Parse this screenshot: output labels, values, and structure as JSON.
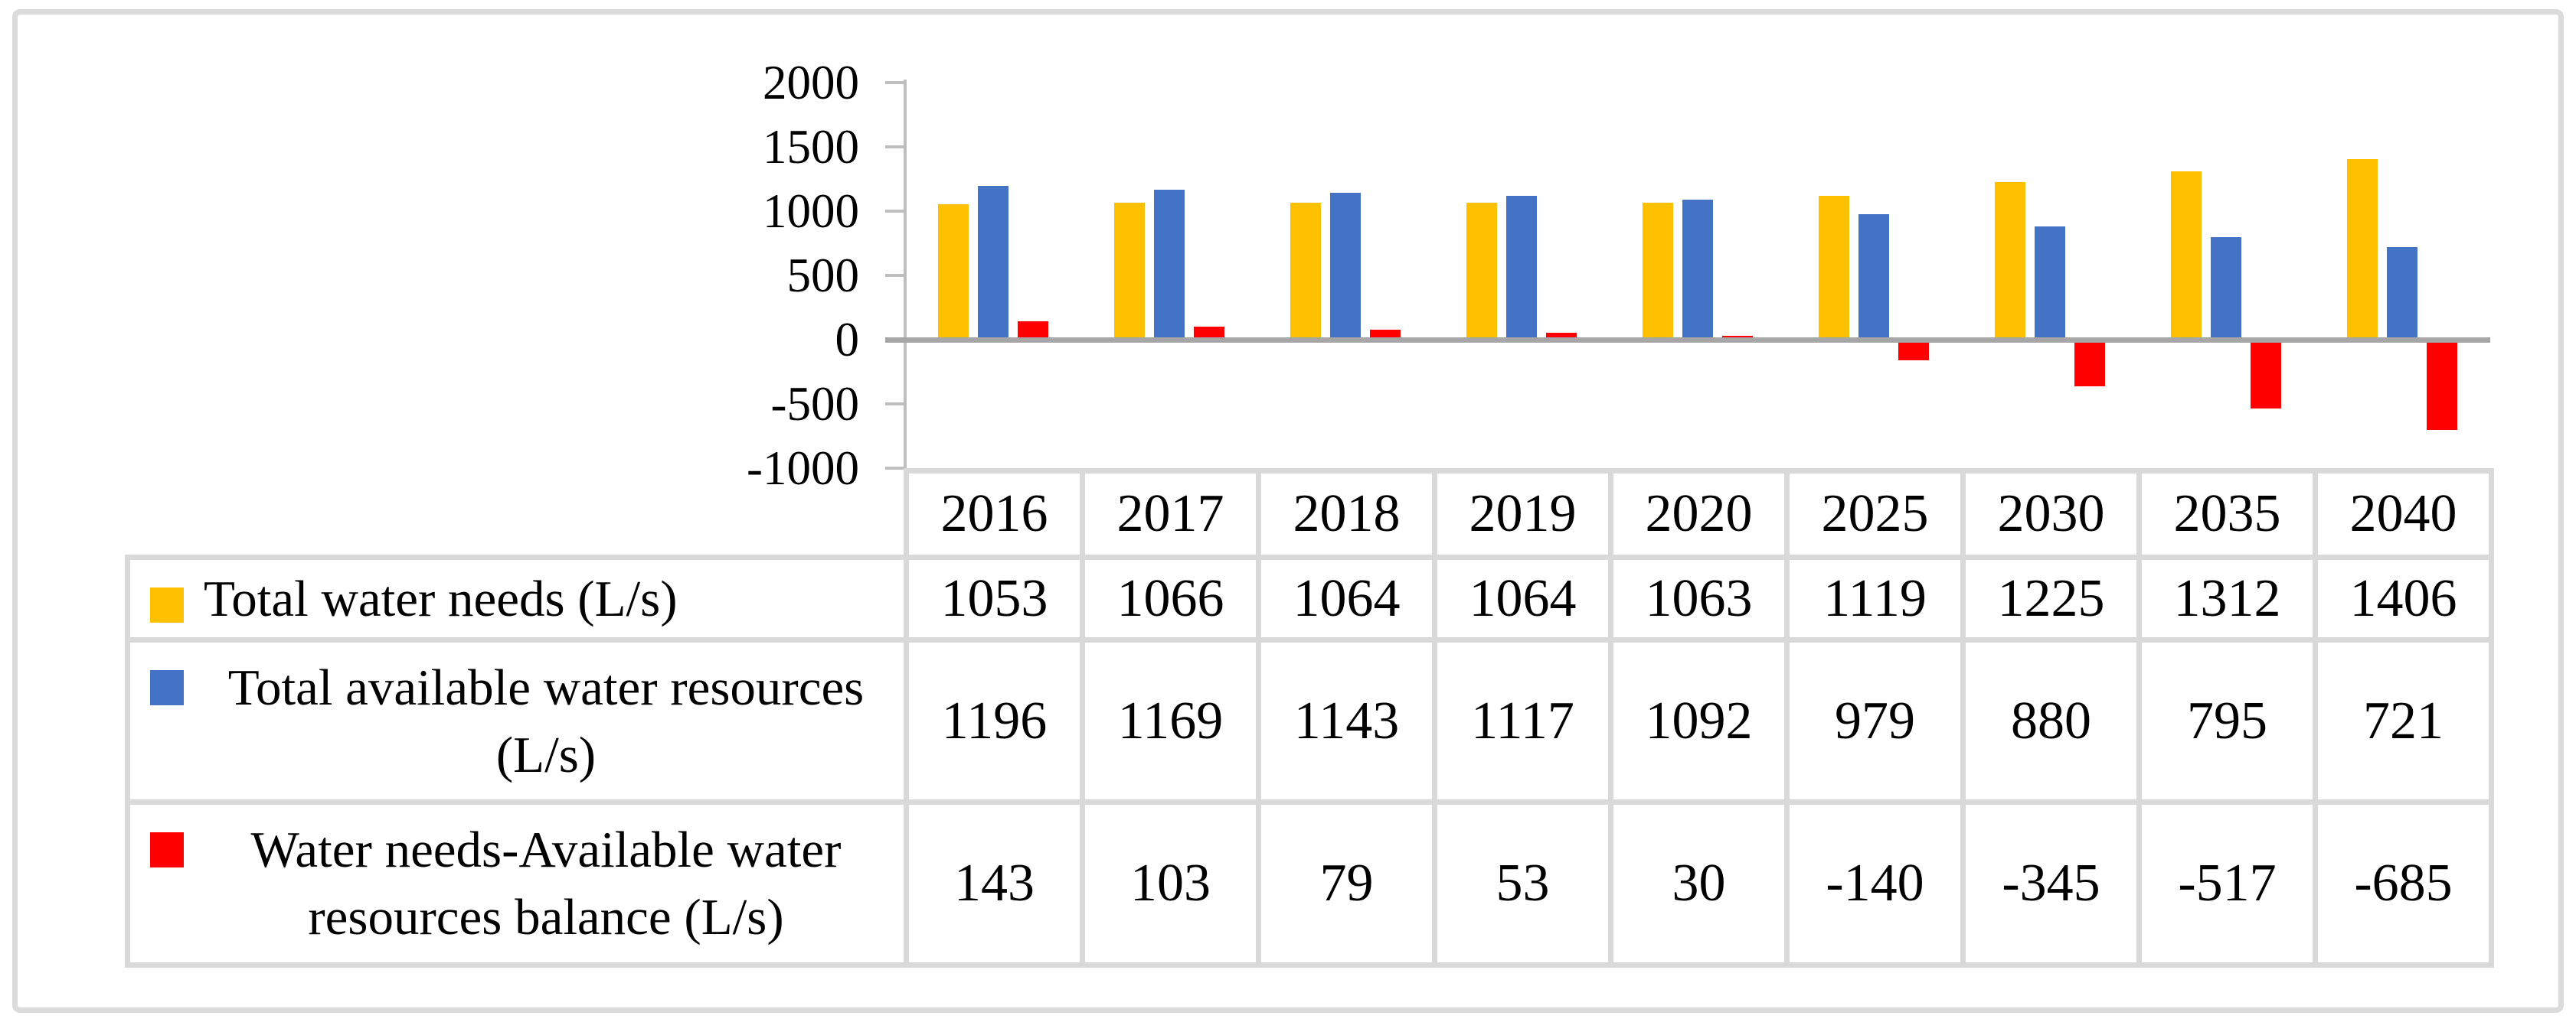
{
  "chart_data": {
    "type": "bar",
    "title": "",
    "xlabel": "",
    "ylabel": "",
    "categories": [
      "2016",
      "2017",
      "2018",
      "2019",
      "2020",
      "2025",
      "2030",
      "2035",
      "2040"
    ],
    "series": [
      {
        "name": "Total water needs (L/s)",
        "color": "#FFC000",
        "values": [
          1053,
          1066,
          1064,
          1064,
          1063,
          1119,
          1225,
          1312,
          1406
        ]
      },
      {
        "name": "Total available water resources (L/s)",
        "color": "#4472C4",
        "values": [
          1196,
          1169,
          1143,
          1117,
          1092,
          979,
          880,
          795,
          721
        ]
      },
      {
        "name": "Water needs-Available water resources balance (L/s)",
        "color": "#FF0000",
        "values": [
          143,
          103,
          79,
          53,
          30,
          -140,
          -345,
          -517,
          -685
        ]
      }
    ],
    "ylim": [
      -1000,
      2000
    ],
    "yticks": [
      2000,
      1500,
      1000,
      500,
      0,
      -500,
      -1000
    ],
    "grid": false,
    "legend_position": "data-table left column"
  },
  "table": {
    "header_years": [
      "2016",
      "2017",
      "2018",
      "2019",
      "2020",
      "2025",
      "2030",
      "2035",
      "2040"
    ],
    "rows": [
      {
        "label": "Total water needs (L/s)",
        "label_lines": [
          "Total water needs (L/s)"
        ],
        "key_color": "#FFC000",
        "values": [
          "1053",
          "1066",
          "1064",
          "1064",
          "1063",
          "1119",
          "1225",
          "1312",
          "1406"
        ]
      },
      {
        "label": "Total available water resources (L/s)",
        "label_lines": [
          "Total available water resources",
          "(L/s)"
        ],
        "key_color": "#4472C4",
        "values": [
          "1196",
          "1169",
          "1143",
          "1117",
          "1092",
          "979",
          "880",
          "795",
          "721"
        ]
      },
      {
        "label": "Water needs-Available water resources balance (L/s)",
        "label_lines": [
          "Water needs-Available water",
          "resources balance (L/s)"
        ],
        "key_color": "#FF0000",
        "values": [
          "143",
          "103",
          "79",
          "53",
          "30",
          "-140",
          "-345",
          "-517",
          "-685"
        ]
      }
    ]
  },
  "colors": {
    "series_gold": "#FFC000",
    "series_blue": "#4472C4",
    "series_red": "#FF0000",
    "axis_line": "#BFBFBF",
    "tick_mark": "#BFBFBF",
    "zero_line": "#A6A6A6",
    "table_border": "#D9D9D9",
    "frame_border": "#DBDBDB",
    "background": "#FFFFFF"
  }
}
